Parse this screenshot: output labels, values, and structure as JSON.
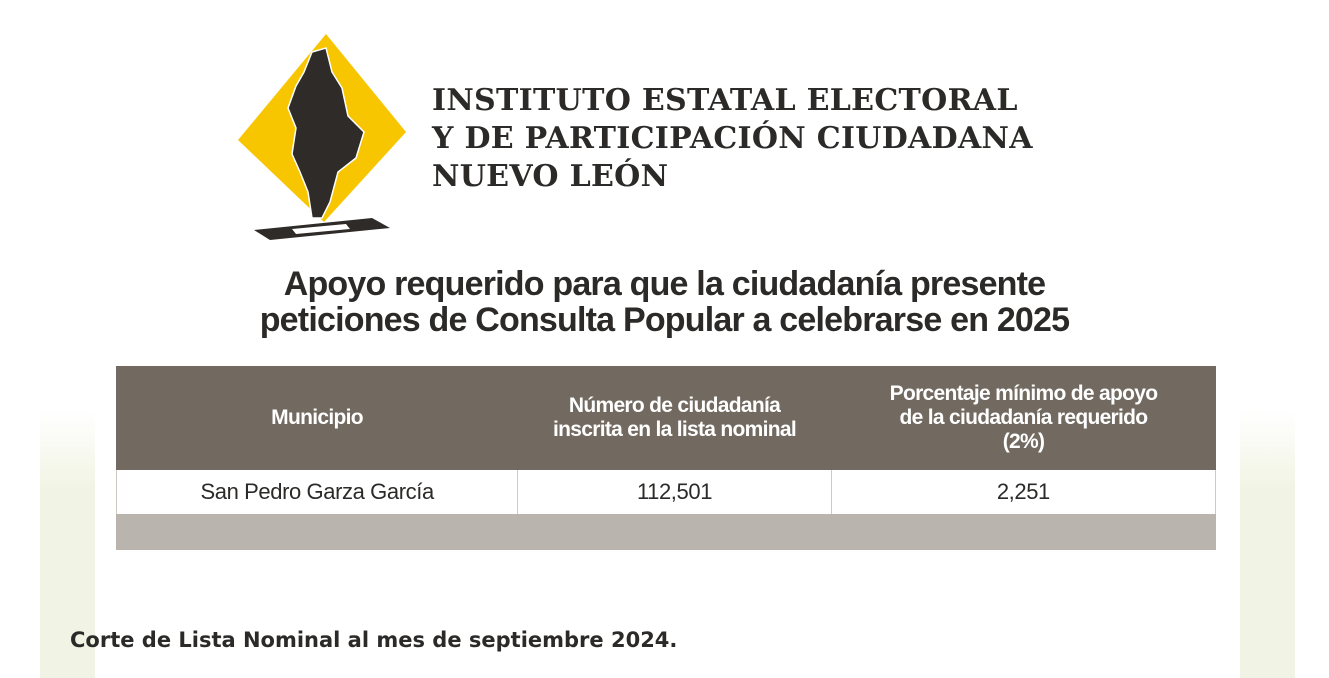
{
  "header": {
    "logo_icon": "iee-nuevo-leon-ballot-logo",
    "institution_lines": [
      "INSTITUTO ESTATAL ELECTORAL",
      "Y DE PARTICIPACIÓN CIUDADANA",
      "NUEVO LEÓN"
    ]
  },
  "headline": {
    "line1": "Apoyo requerido para que la ciudadanía presente",
    "line2": "peticiones de Consulta Popular a celebrarse en 2025"
  },
  "table": {
    "columns": [
      "Municipio",
      "Número de ciudadanía\ninscrita en la lista nominal",
      "Porcentaje mínimo de apoyo\nde la ciudadanía requerido\n(2%)"
    ],
    "rows": [
      [
        "San Pedro Garza García",
        "112,501",
        "2,251"
      ]
    ]
  },
  "footnote": "Corte de Lista Nominal al mes de septiembre 2024.",
  "colors": {
    "header_bg": "#726a60",
    "footer_bar": "#b9b4ae",
    "logo_yellow": "#f7c600",
    "logo_dark": "#2e2b28",
    "text": "#2b2a28"
  }
}
